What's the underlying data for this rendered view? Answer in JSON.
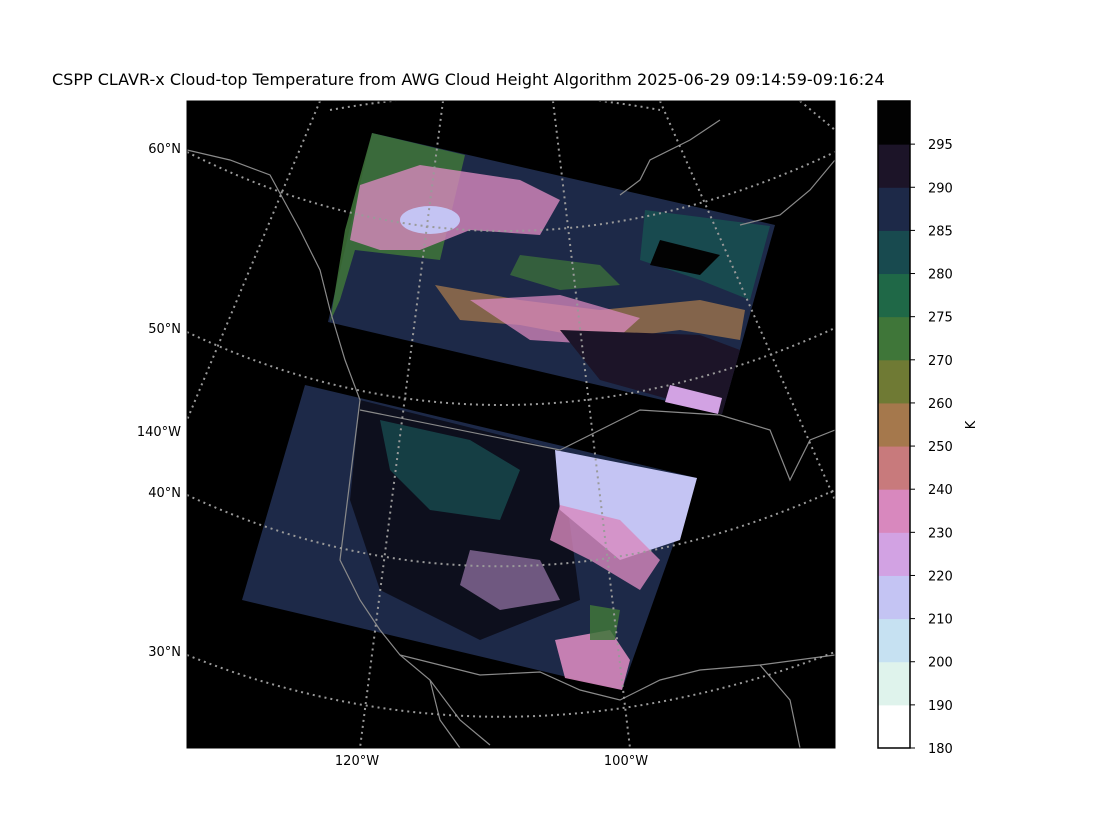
{
  "figure": {
    "title": "CSPP CLAVR-x Cloud-top Temperature from AWG Cloud Height Algorithm 2025-06-29 09:14:59-09:16:24"
  },
  "map": {
    "lat_labels": [
      "60°N",
      "50°N",
      "40°N",
      "30°N"
    ],
    "lon_labels_left": [
      "140°W"
    ],
    "lon_labels_bottom": [
      "120°W",
      "100°W"
    ],
    "background_color": "#000000",
    "coastline_color": "#8a8a8a",
    "gridline_color": "#9a9a9a"
  },
  "colorbar": {
    "label": "K",
    "ticks": [
      "180",
      "190",
      "200",
      "210",
      "220",
      "230",
      "240",
      "250",
      "260",
      "270",
      "275",
      "280",
      "285",
      "290",
      "295"
    ],
    "colors": [
      {
        "range": "180-190",
        "color": "#ffffff"
      },
      {
        "range": "190-200",
        "color": "#dff3ec"
      },
      {
        "range": "200-210",
        "color": "#c6e1f2"
      },
      {
        "range": "210-220",
        "color": "#c4c4f3"
      },
      {
        "range": "220-230",
        "color": "#d2a2e3"
      },
      {
        "range": "230-240",
        "color": "#d888be"
      },
      {
        "range": "240-250",
        "color": "#c87a7c"
      },
      {
        "range": "250-260",
        "color": "#a5784c"
      },
      {
        "range": "260-265",
        "color": "#6f7a34"
      },
      {
        "range": "265-270",
        "color": "#3f7639"
      },
      {
        "range": "270-275",
        "color": "#1f6847"
      },
      {
        "range": "275-280",
        "color": "#184a4f"
      },
      {
        "range": "280-285",
        "color": "#1d2948"
      },
      {
        "range": "285-290",
        "color": "#1c1428"
      },
      {
        "range": "290-295",
        "color": "#020202"
      }
    ]
  }
}
